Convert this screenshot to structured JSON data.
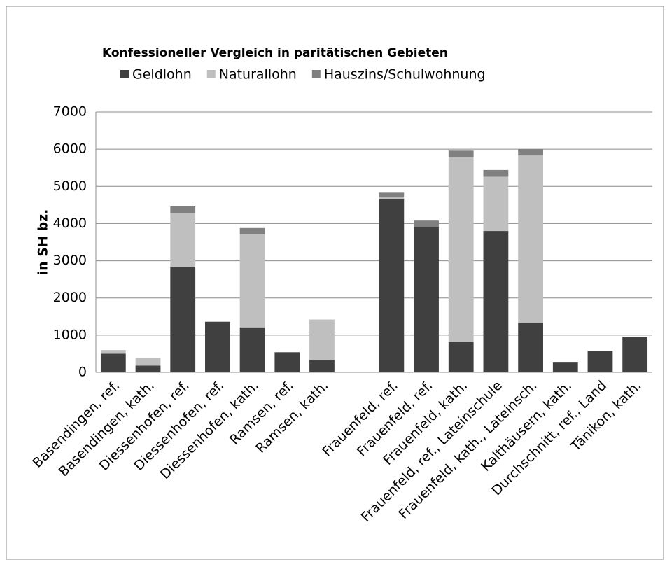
{
  "chart_data": {
    "type": "stacked_bar",
    "title": "Konfessioneller Vergleich in paritätischen Gebieten",
    "y_label": "in SH bz.",
    "categories": [
      "Basendingen, ref.",
      "Basendingen, kath.",
      "Diessenhofen, ref.",
      "Diessenhofen, ref.",
      "Diessenhofen, kath.",
      "Ramsen, ref.",
      "Ramsen, kath.",
      null,
      "Frauenfeld, ref.",
      "Frauenfeld, ref.",
      "Frauenfeld, kath.",
      "Frauenfeld, ref., Lateinschule",
      "Frauenfeld, kath., Lateinsch.",
      "Kalthäusern, kath.",
      "Durchschnitt, ref., Land",
      "Tänikon, kath."
    ],
    "series": [
      {
        "name": "Geldlohn",
        "color": "#404040",
        "values": [
          500,
          180,
          2840,
          1360,
          1210,
          540,
          330,
          null,
          4650,
          3900,
          820,
          3800,
          1330,
          280,
          580,
          960
        ]
      },
      {
        "name": "Naturallohn",
        "color": "#bfbfbf",
        "values": [
          100,
          200,
          1450,
          0,
          2500,
          0,
          1090,
          null,
          50,
          0,
          4960,
          1460,
          4500,
          0,
          0,
          0
        ]
      },
      {
        "name": "Hauszins/Schulwohnung",
        "color": "#808080",
        "values": [
          0,
          0,
          170,
          0,
          170,
          0,
          0,
          null,
          130,
          180,
          180,
          180,
          170,
          0,
          0,
          0
        ]
      }
    ],
    "ylim": [
      0,
      7000
    ],
    "yticks": [
      0,
      1000,
      2000,
      3000,
      4000,
      5000,
      6000,
      7000
    ],
    "grid": true,
    "legend": "top"
  }
}
